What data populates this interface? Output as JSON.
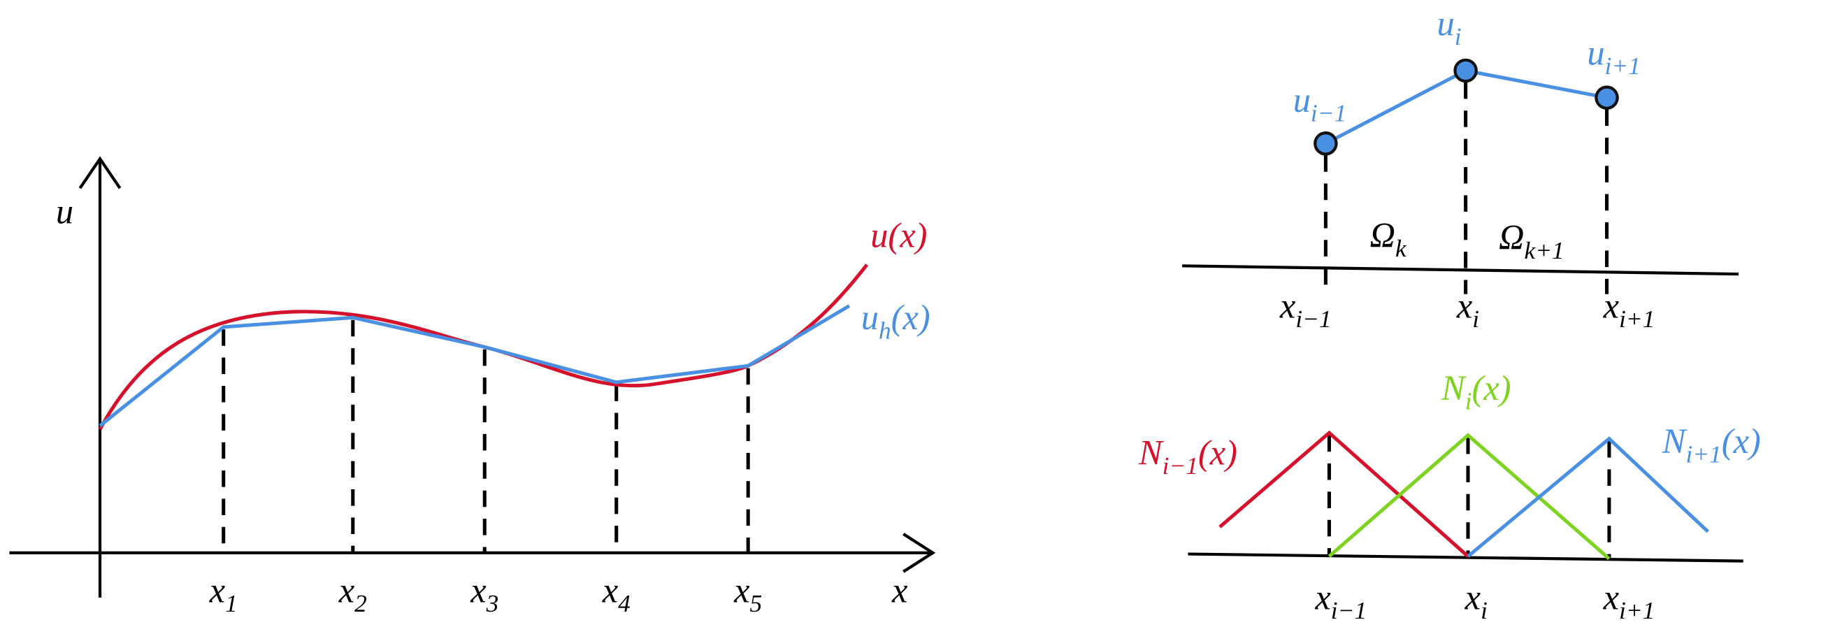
{
  "left_plot": {
    "axis_labels": {
      "y": "u",
      "x": "x"
    },
    "curves": [
      {
        "main": "u",
        "suffix": "(x)"
      },
      {
        "main": "u",
        "sub": "h",
        "suffix": "(x)"
      }
    ],
    "node_labels": [
      {
        "main": "x",
        "sub": "1"
      },
      {
        "main": "x",
        "sub": "2"
      },
      {
        "main": "x",
        "sub": "3"
      },
      {
        "main": "x",
        "sub": "4"
      },
      {
        "main": "x",
        "sub": "5"
      }
    ]
  },
  "element_plot": {
    "node_values": [
      {
        "main": "u",
        "sub": "i−1"
      },
      {
        "main": "u",
        "sub": "i"
      },
      {
        "main": "u",
        "sub": "i+1"
      }
    ],
    "elements": [
      {
        "main": "Ω",
        "sub": "k"
      },
      {
        "main": "Ω",
        "sub": "k+1"
      }
    ],
    "node_labels": [
      {
        "main": "x",
        "sub": "i−1"
      },
      {
        "main": "x",
        "sub": "i"
      },
      {
        "main": "x",
        "sub": "i+1"
      }
    ]
  },
  "shape_functions": {
    "functions": [
      {
        "main": "N",
        "sub": "i−1",
        "suffix": "(x)"
      },
      {
        "main": "N",
        "sub": "i",
        "suffix": "(x)"
      },
      {
        "main": "N",
        "sub": "i+1",
        "suffix": "(x)"
      }
    ],
    "node_labels": [
      {
        "main": "x",
        "sub": "i−1"
      },
      {
        "main": "x",
        "sub": "i"
      },
      {
        "main": "x",
        "sub": "i+1"
      }
    ]
  }
}
